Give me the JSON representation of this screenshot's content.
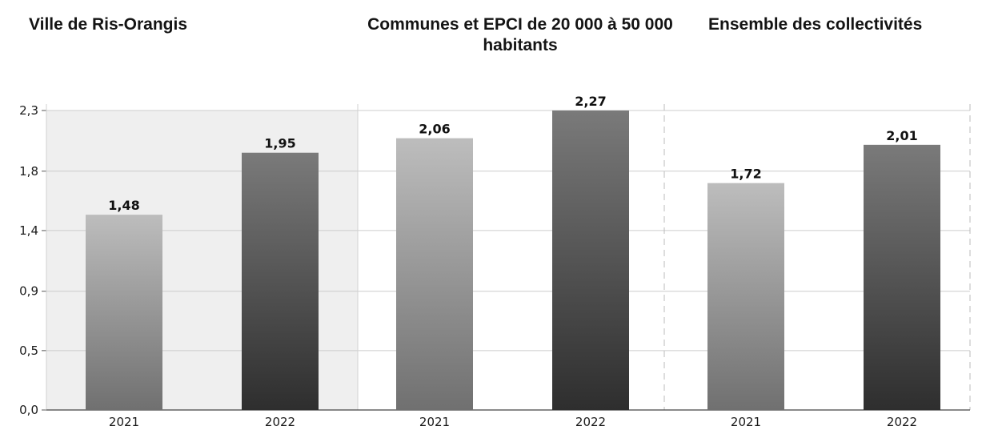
{
  "chart_data": {
    "type": "bar",
    "panels": [
      {
        "title": "Ville de Ris-Orangis",
        "categories": [
          "2021",
          "2022"
        ],
        "values": [
          1.48,
          1.95
        ],
        "value_labels": [
          "1,48",
          "1,95"
        ]
      },
      {
        "title": "Communes et EPCI de 20 000 à 50 000 habitants",
        "categories": [
          "2021",
          "2022"
        ],
        "values": [
          2.06,
          2.27
        ],
        "value_labels": [
          "2,06",
          "2,27"
        ]
      },
      {
        "title": "Ensemble des collectivités",
        "categories": [
          "2021",
          "2022"
        ],
        "values": [
          1.72,
          2.01
        ],
        "value_labels": [
          "1,72",
          "2,01"
        ]
      }
    ],
    "y_ticks": [
      {
        "value": 0.0,
        "label": "0,0"
      },
      {
        "value": 0.45,
        "label": "0,5"
      },
      {
        "value": 0.9,
        "label": "0,9"
      },
      {
        "value": 1.36,
        "label": "1,4"
      },
      {
        "value": 1.81,
        "label": "1,8"
      },
      {
        "value": 2.27,
        "label": "2,3"
      }
    ],
    "ylim": [
      0,
      2.27
    ],
    "grid": true,
    "colors": {
      "bar_2021_light": "#bdbdbd",
      "bar_2021_dark": "#707070",
      "bar_2022_light": "#7a7a7a",
      "bar_2022_dark": "#2e2e2e",
      "panel_shade": "#efefef",
      "grid": "#cccccc"
    }
  }
}
